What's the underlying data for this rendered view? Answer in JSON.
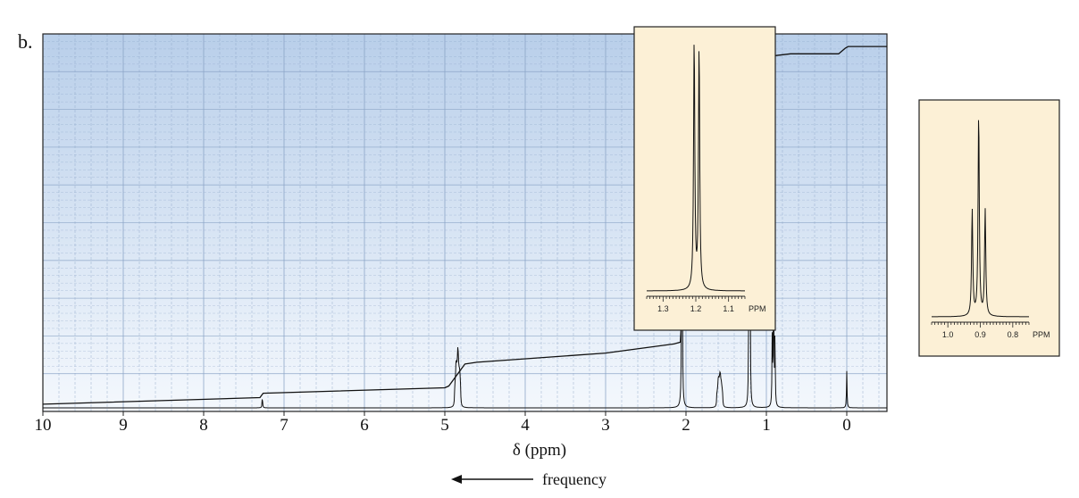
{
  "panel_label": "b.",
  "x_axis_title": "δ (ppm)",
  "direction_label": "frequency",
  "colors": {
    "plot_bg_top": "#b9cfea",
    "plot_bg_bottom": "#f4f8fd",
    "grid": "#8aa3c6",
    "trace": "#111111",
    "inset_bg": "#fcf0d6"
  },
  "chart_data": [
    {
      "type": "line",
      "title": "",
      "xlabel": "δ (ppm)",
      "ylabel": "",
      "xlim": [
        10,
        -0.5
      ],
      "x_reversed": true,
      "ylim": [
        0,
        1
      ],
      "grid": true,
      "x_ticks": [
        "10",
        "9",
        "8",
        "7",
        "6",
        "5",
        "4",
        "3",
        "2",
        "1",
        "0"
      ],
      "x_tick_values": [
        10,
        9,
        8,
        7,
        6,
        5,
        4,
        3,
        2,
        1,
        0
      ],
      "series": [
        {
          "role": "spectrum",
          "peaks": [
            {
              "shift": 7.27,
              "height": 0.03,
              "multiplicity": "singlet"
            },
            {
              "shift": 4.84,
              "height": 0.11,
              "multiplicity": "multiplet"
            },
            {
              "shift": 2.05,
              "height": 0.98,
              "multiplicity": "singlet"
            },
            {
              "shift": 1.58,
              "height": 0.07,
              "multiplicity": "multiplet"
            },
            {
              "shift": 1.21,
              "height": 0.5,
              "multiplicity": "doublet"
            },
            {
              "shift": 0.91,
              "height": 0.42,
              "multiplicity": "triplet"
            },
            {
              "shift": 0.0,
              "height": 0.1,
              "multiplicity": "singlet"
            }
          ]
        },
        {
          "role": "integral",
          "x": [
            10.0,
            7.3,
            7.26,
            5.0,
            4.95,
            4.75,
            4.6,
            3.0,
            2.15,
            2.07,
            2.03,
            1.85,
            1.7,
            1.5,
            1.35,
            1.25,
            1.23,
            1.19,
            1.1,
            0.95,
            0.93,
            0.89,
            0.7,
            0.1,
            0.02,
            -0.02,
            -0.5
          ],
          "y": [
            0.01,
            0.028,
            0.04,
            0.055,
            0.06,
            0.12,
            0.125,
            0.15,
            0.175,
            0.18,
            0.34,
            0.37,
            0.39,
            0.53,
            0.55,
            0.56,
            0.74,
            0.76,
            0.775,
            0.78,
            0.95,
            0.965,
            0.97,
            0.97,
            0.985,
            0.99,
            0.99
          ]
        }
      ]
    },
    {
      "type": "line",
      "title": "",
      "xlabel": "PPM",
      "xlim": [
        1.35,
        1.05
      ],
      "x_reversed": true,
      "x_ticks": [
        "1.3",
        "1.2",
        "1.1"
      ],
      "x_tick_values": [
        1.3,
        1.2,
        1.1
      ],
      "series": [
        {
          "role": "inset-spectrum",
          "peaks": [
            {
              "shift": 1.205,
              "height": 1.0
            },
            {
              "shift": 1.19,
              "height": 0.97
            }
          ]
        }
      ]
    },
    {
      "type": "line",
      "title": "",
      "xlabel": "PPM",
      "xlim": [
        1.05,
        0.75
      ],
      "x_reversed": true,
      "x_ticks": [
        "1.0",
        "0.9",
        "0.8"
      ],
      "x_tick_values": [
        1.0,
        0.9,
        0.8
      ],
      "series": [
        {
          "role": "inset-spectrum",
          "peaks": [
            {
              "shift": 0.925,
              "height": 0.52
            },
            {
              "shift": 0.905,
              "height": 1.0
            },
            {
              "shift": 0.885,
              "height": 0.52
            }
          ]
        }
      ]
    }
  ]
}
